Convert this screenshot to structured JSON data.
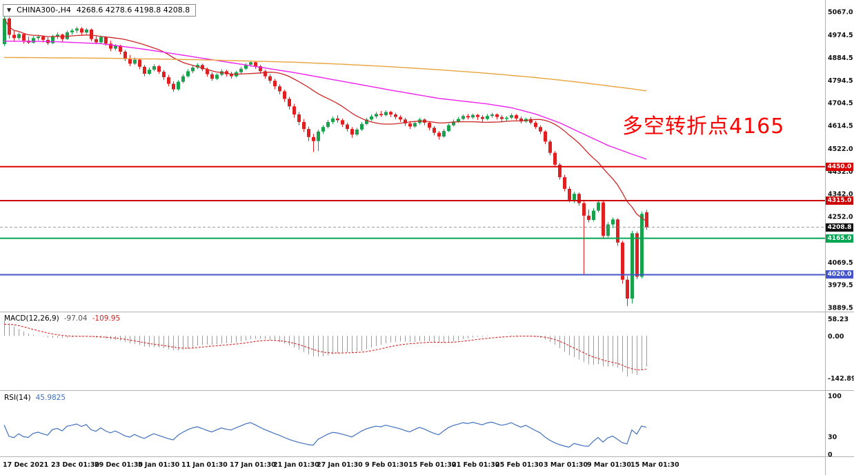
{
  "header": {
    "symbol": "CHINA300-,H4",
    "ohlc_text": "4268.6 4278.6 4198.8 4208.8"
  },
  "annotation": {
    "text": "多空转折点4165",
    "color": "#ff0000"
  },
  "colors": {
    "up": "#1aa14b",
    "down": "#e02020",
    "ma_fast": "#cd2626",
    "ma_mid": "#ee22ee",
    "ma_slow": "#e8a33c",
    "macd_hist": "#9a9a9a",
    "macd_signal": "#dd2222",
    "rsi_line": "#3f6fbf",
    "separator": "#b0b0b0",
    "current_price_line": "#999999"
  },
  "chart_data": [
    {
      "type": "candlestick",
      "title": "CHINA300-,H4",
      "timeframe": "H4",
      "last_ohlc": {
        "open": 4268.6,
        "high": 4278.6,
        "low": 4198.8,
        "close": 4208.8
      },
      "y_ticks": [
        "5067.0",
        "4974.5",
        "4884.5",
        "4794.5",
        "4704.5",
        "4614.5",
        "4522.0",
        "4432.0",
        "4342.0",
        "4252.0",
        "4069.5",
        "3979.5",
        "3889.5"
      ],
      "ylim": [
        3860,
        5085
      ],
      "x_labels": [
        {
          "text": "17 Dec 2021",
          "i": 0
        },
        {
          "text": "23 Dec 01:30",
          "i": 10
        },
        {
          "text": "29 Dec 01:30",
          "i": 19
        },
        {
          "text": "5 Jan 01:30",
          "i": 28
        },
        {
          "text": "11 Jan 01:30",
          "i": 37
        },
        {
          "text": "17 Jan 01:30",
          "i": 47
        },
        {
          "text": "21 Jan 01:30",
          "i": 56
        },
        {
          "text": "27 Jan 01:30",
          "i": 65
        },
        {
          "text": "9 Feb 01:30",
          "i": 75
        },
        {
          "text": "15 Feb 01:30",
          "i": 84
        },
        {
          "text": "21 Feb 01:30",
          "i": 93
        },
        {
          "text": "25 Feb 01:30",
          "i": 102
        },
        {
          "text": "3 Mar 01:30",
          "i": 112
        },
        {
          "text": "9 Mar 01:30",
          "i": 121
        },
        {
          "text": "15 Mar 01:30",
          "i": 130
        }
      ],
      "horizontal_lines": [
        {
          "label": "4450.0",
          "price": 4450.0,
          "color": "#dd0000"
        },
        {
          "label": "4315.0",
          "price": 4315.0,
          "color": "#cc0000"
        },
        {
          "label": "4165.0",
          "price": 4165.0,
          "color": "#00a651"
        },
        {
          "label": "4020.0",
          "price": 4020.0,
          "color": "#4455cc"
        }
      ],
      "current_price": {
        "label": "4208.8",
        "price": 4208.8,
        "badge_color": "#111111"
      },
      "moving_averages": [
        {
          "name": "fast-red",
          "color": "#cd2626",
          "method": "sma20_of_closes"
        },
        {
          "name": "medium-magenta",
          "color": "#ee22ee",
          "waypoints": [
            [
              0,
              4950
            ],
            [
              10,
              4948
            ],
            [
              20,
              4940
            ],
            [
              30,
              4915
            ],
            [
              40,
              4885
            ],
            [
              50,
              4855
            ],
            [
              60,
              4825
            ],
            [
              70,
              4790
            ],
            [
              80,
              4755
            ],
            [
              90,
              4722
            ],
            [
              100,
              4700
            ],
            [
              105,
              4685
            ],
            [
              110,
              4660
            ],
            [
              115,
              4625
            ],
            [
              120,
              4580
            ],
            [
              125,
              4535
            ],
            [
              130,
              4500
            ],
            [
              133,
              4480
            ]
          ]
        },
        {
          "name": "slow-orange",
          "color": "#e8a33c",
          "waypoints": [
            [
              0,
              4885
            ],
            [
              20,
              4882
            ],
            [
              40,
              4876
            ],
            [
              60,
              4866
            ],
            [
              70,
              4858
            ],
            [
              80,
              4848
            ],
            [
              90,
              4836
            ],
            [
              100,
              4822
            ],
            [
              110,
              4805
            ],
            [
              115,
              4795
            ],
            [
              120,
              4784
            ],
            [
              125,
              4772
            ],
            [
              130,
              4760
            ],
            [
              133,
              4752
            ]
          ]
        }
      ],
      "candles_ohlc": [
        [
          4938,
          5062,
          4930,
          5040
        ],
        [
          5040,
          5045,
          4960,
          4975
        ],
        [
          4975,
          4990,
          4950,
          4962
        ],
        [
          4962,
          4985,
          4955,
          4978
        ],
        [
          4978,
          4982,
          4940,
          4952
        ],
        [
          4952,
          4968,
          4938,
          4944
        ],
        [
          4944,
          4970,
          4940,
          4962
        ],
        [
          4962,
          4975,
          4952,
          4968
        ],
        [
          4968,
          4972,
          4945,
          4955
        ],
        [
          4955,
          4965,
          4935,
          4942
        ],
        [
          4942,
          4975,
          4938,
          4970
        ],
        [
          4970,
          4985,
          4958,
          4976
        ],
        [
          4976,
          4980,
          4948,
          4958
        ],
        [
          4958,
          4992,
          4955,
          4985
        ],
        [
          4985,
          5000,
          4975,
          4992
        ],
        [
          4992,
          5008,
          4982,
          5000
        ],
        [
          5000,
          5006,
          4975,
          4984
        ],
        [
          4984,
          5002,
          4978,
          4996
        ],
        [
          4996,
          5000,
          4950,
          4958
        ],
        [
          4958,
          4970,
          4938,
          4945
        ],
        [
          4945,
          4972,
          4940,
          4966
        ],
        [
          4966,
          4970,
          4932,
          4940
        ],
        [
          4940,
          4952,
          4910,
          4920
        ],
        [
          4920,
          4938,
          4912,
          4932
        ],
        [
          4932,
          4936,
          4898,
          4908
        ],
        [
          4908,
          4915,
          4870,
          4878
        ],
        [
          4878,
          4895,
          4850,
          4860
        ],
        [
          4860,
          4885,
          4855,
          4876
        ],
        [
          4876,
          4880,
          4838,
          4848
        ],
        [
          4848,
          4855,
          4810,
          4820
        ],
        [
          4820,
          4845,
          4815,
          4836
        ],
        [
          4836,
          4858,
          4830,
          4850
        ],
        [
          4850,
          4855,
          4820,
          4828
        ],
        [
          4828,
          4835,
          4795,
          4806
        ],
        [
          4806,
          4815,
          4770,
          4780
        ],
        [
          4780,
          4790,
          4748,
          4758
        ],
        [
          4758,
          4795,
          4752,
          4788
        ],
        [
          4788,
          4818,
          4782,
          4810
        ],
        [
          4810,
          4838,
          4805,
          4830
        ],
        [
          4830,
          4852,
          4822,
          4845
        ],
        [
          4845,
          4862,
          4838,
          4855
        ],
        [
          4855,
          4860,
          4830,
          4838
        ],
        [
          4838,
          4845,
          4808,
          4818
        ],
        [
          4818,
          4826,
          4792,
          4800
        ],
        [
          4800,
          4822,
          4795,
          4816
        ],
        [
          4816,
          4838,
          4810,
          4830
        ],
        [
          4830,
          4836,
          4808,
          4818
        ],
        [
          4818,
          4828,
          4800,
          4810
        ],
        [
          4810,
          4832,
          4805,
          4826
        ],
        [
          4826,
          4848,
          4820,
          4840
        ],
        [
          4840,
          4862,
          4835,
          4856
        ],
        [
          4856,
          4872,
          4848,
          4866
        ],
        [
          4866,
          4870,
          4840,
          4850
        ],
        [
          4850,
          4856,
          4820,
          4830
        ],
        [
          4830,
          4836,
          4800,
          4810
        ],
        [
          4810,
          4818,
          4782,
          4792
        ],
        [
          4792,
          4800,
          4758,
          4770
        ],
        [
          4770,
          4778,
          4738,
          4750
        ],
        [
          4750,
          4756,
          4708,
          4720
        ],
        [
          4720,
          4728,
          4678,
          4690
        ],
        [
          4690,
          4700,
          4645,
          4658
        ],
        [
          4658,
          4668,
          4615,
          4628
        ],
        [
          4628,
          4640,
          4588,
          4600
        ],
        [
          4600,
          4610,
          4552,
          4568
        ],
        [
          4568,
          4580,
          4508,
          4552
        ],
        [
          4552,
          4598,
          4512,
          4590
        ],
        [
          4590,
          4615,
          4580,
          4608
        ],
        [
          4608,
          4636,
          4602,
          4628
        ],
        [
          4628,
          4650,
          4620,
          4642
        ],
        [
          4642,
          4655,
          4625,
          4635
        ],
        [
          4635,
          4642,
          4608,
          4618
        ],
        [
          4618,
          4625,
          4590,
          4600
        ],
        [
          4600,
          4608,
          4565,
          4578
        ],
        [
          4578,
          4605,
          4572,
          4598
        ],
        [
          4598,
          4628,
          4592,
          4620
        ],
        [
          4620,
          4645,
          4615,
          4638
        ],
        [
          4638,
          4658,
          4632,
          4650
        ],
        [
          4650,
          4668,
          4642,
          4660
        ],
        [
          4660,
          4672,
          4648,
          4655
        ],
        [
          4655,
          4675,
          4650,
          4668
        ],
        [
          4668,
          4672,
          4648,
          4658
        ],
        [
          4658,
          4665,
          4638,
          4648
        ],
        [
          4648,
          4655,
          4628,
          4638
        ],
        [
          4638,
          4645,
          4612,
          4622
        ],
        [
          4622,
          4632,
          4600,
          4610
        ],
        [
          4610,
          4630,
          4605,
          4624
        ],
        [
          4624,
          4645,
          4618,
          4638
        ],
        [
          4638,
          4642,
          4615,
          4625
        ],
        [
          4625,
          4630,
          4595,
          4605
        ],
        [
          4605,
          4612,
          4575,
          4585
        ],
        [
          4585,
          4592,
          4558,
          4570
        ],
        [
          4570,
          4600,
          4565,
          4592
        ],
        [
          4592,
          4622,
          4588,
          4615
        ],
        [
          4615,
          4638,
          4610,
          4630
        ],
        [
          4630,
          4648,
          4625,
          4640
        ],
        [
          4640,
          4658,
          4635,
          4652
        ],
        [
          4652,
          4660,
          4638,
          4646
        ],
        [
          4646,
          4662,
          4640,
          4656
        ],
        [
          4656,
          4660,
          4636,
          4648
        ],
        [
          4648,
          4655,
          4628,
          4640
        ],
        [
          4640,
          4660,
          4635,
          4652
        ],
        [
          4652,
          4665,
          4645,
          4658
        ],
        [
          4658,
          4662,
          4638,
          4648
        ],
        [
          4648,
          4656,
          4628,
          4640
        ],
        [
          4640,
          4652,
          4630,
          4645
        ],
        [
          4645,
          4662,
          4640,
          4655
        ],
        [
          4655,
          4660,
          4635,
          4642
        ],
        [
          4642,
          4650,
          4622,
          4630
        ],
        [
          4630,
          4645,
          4625,
          4640
        ],
        [
          4640,
          4648,
          4618,
          4625
        ],
        [
          4625,
          4632,
          4600,
          4608
        ],
        [
          4608,
          4615,
          4580,
          4590
        ],
        [
          4590,
          4595,
          4540,
          4550
        ],
        [
          4550,
          4558,
          4495,
          4505
        ],
        [
          4505,
          4512,
          4448,
          4458
        ],
        [
          4458,
          4465,
          4398,
          4408
        ],
        [
          4408,
          4418,
          4352,
          4362
        ],
        [
          4362,
          4372,
          4308,
          4318
        ],
        [
          4318,
          4350,
          4305,
          4342
        ],
        [
          4342,
          4348,
          4295,
          4305
        ],
        [
          4305,
          4312,
          4022,
          4255
        ],
        [
          4255,
          4280,
          4228,
          4238
        ],
        [
          4238,
          4285,
          4232,
          4275
        ],
        [
          4275,
          4315,
          4268,
          4308
        ],
        [
          4308,
          4315,
          4162,
          4175
        ],
        [
          4175,
          4230,
          4168,
          4220
        ],
        [
          4220,
          4248,
          4205,
          4240
        ],
        [
          4240,
          4245,
          4135,
          4148
        ],
        [
          4148,
          4155,
          3985,
          4000
        ],
        [
          4000,
          4015,
          3895,
          3925
        ],
        [
          3925,
          4195,
          3905,
          4185
        ],
        [
          4185,
          4192,
          4002,
          4012
        ],
        [
          4012,
          4272,
          4005,
          4262
        ],
        [
          4268.6,
          4278.6,
          4198.8,
          4208.8
        ]
      ]
    },
    {
      "type": "macd",
      "label": "MACD(12,26,9)",
      "macd_text": "-97.04",
      "signal_text": "-109.95",
      "macd_value": -97.04,
      "signal_value": -109.95,
      "y_ticks": [
        {
          "label": "58.23",
          "value": 58.23
        },
        {
          "label": "0.00",
          "value": 0
        },
        {
          "label": "-142.89",
          "value": -142.89
        }
      ],
      "derived_from": "candles (EMA12-EMA26, signal EMA9)"
    },
    {
      "type": "rsi",
      "label": "RSI(14)",
      "value_text": "45.9825",
      "value": 45.9825,
      "y_ticks": [
        {
          "label": "100",
          "value": 100
        },
        {
          "label": "30",
          "value": 30
        },
        {
          "label": "0",
          "value": 0
        }
      ],
      "derived_from": "candles (Wilder 14)"
    }
  ]
}
